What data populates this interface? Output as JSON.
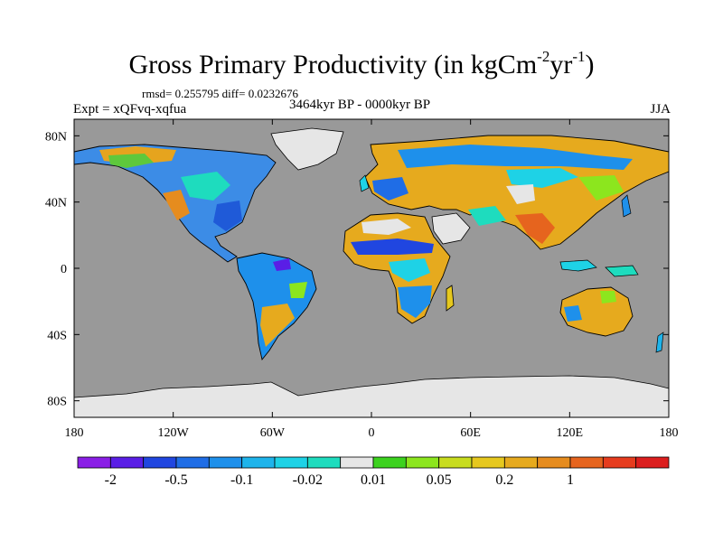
{
  "title": {
    "main": "Gross Primary Productivity (in kgCm",
    "exp1": "-2",
    "mid": "yr",
    "exp2": "-1",
    "end": ")"
  },
  "stats_line": "rmsd= 0.255795 diff= 0.0232676",
  "experiment_label": "Expt = xQFvq-xqfua",
  "period_label": "3464kyr BP - 0000kyr BP",
  "season_label": "JJA",
  "axes": {
    "lon_ticks": [
      {
        "value": -180,
        "label": "180"
      },
      {
        "value": -120,
        "label": "120W"
      },
      {
        "value": -60,
        "label": "60W"
      },
      {
        "value": 0,
        "label": "0"
      },
      {
        "value": 60,
        "label": "60E"
      },
      {
        "value": 120,
        "label": "120E"
      },
      {
        "value": 180,
        "label": "180"
      }
    ],
    "lat_ticks": [
      {
        "value": 80,
        "label": "80N"
      },
      {
        "value": 40,
        "label": "40N"
      },
      {
        "value": 0,
        "label": "0"
      },
      {
        "value": -40,
        "label": "40S"
      },
      {
        "value": -80,
        "label": "80S"
      }
    ]
  },
  "colors": {
    "ocean": "#999999",
    "ice": "#e6e6e6",
    "coast": "#000000",
    "frame": "#000000"
  },
  "colorbar": {
    "bins": [
      "#8a1ee6",
      "#5a1ee6",
      "#2046e0",
      "#1f6de6",
      "#1e90eb",
      "#1eb4eb",
      "#1ed2e6",
      "#1edcbe",
      "#e6e6e6",
      "#3cd21e",
      "#8ce61e",
      "#c8dc1e",
      "#e6c81e",
      "#e6aa1e",
      "#e68c1e",
      "#e6641e",
      "#e63c1e",
      "#dc1e1e"
    ],
    "labels": [
      {
        "boundary": 1,
        "text": "-2"
      },
      {
        "boundary": 3,
        "text": "-0.5"
      },
      {
        "boundary": 5,
        "text": "-0.1"
      },
      {
        "boundary": 7,
        "text": "-0.02"
      },
      {
        "boundary": 9,
        "text": "0.01"
      },
      {
        "boundary": 11,
        "text": "0.05"
      },
      {
        "boundary": 13,
        "text": "0.2"
      },
      {
        "boundary": 15,
        "text": "1"
      }
    ]
  }
}
